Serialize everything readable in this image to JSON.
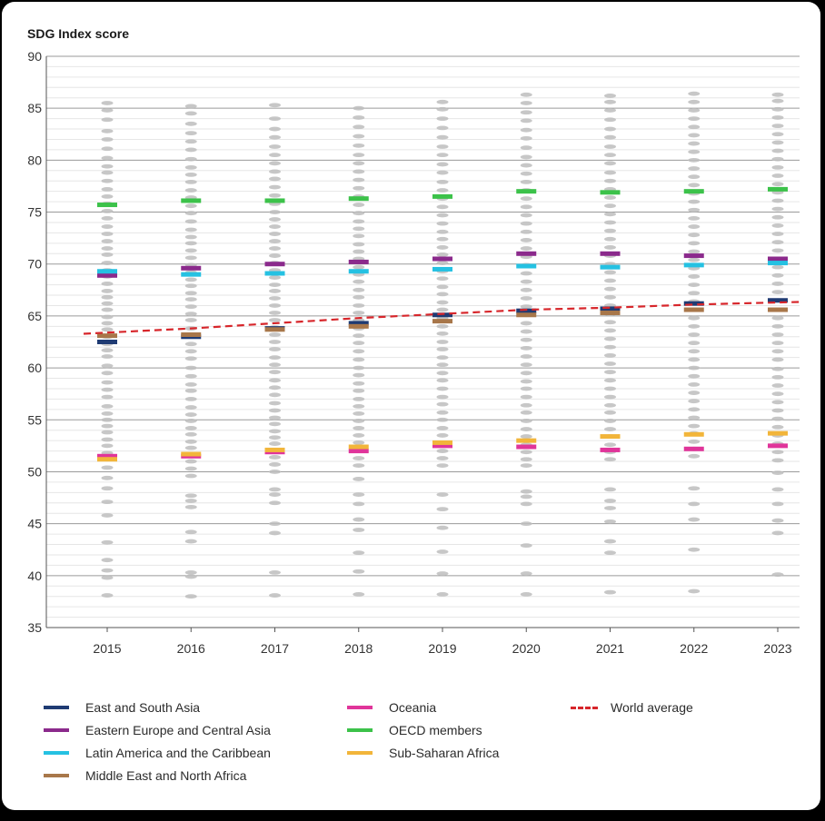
{
  "chart_data": {
    "type": "scatter",
    "title": "SDG Index score",
    "ylabel": "SDG Index score",
    "xlabel": "",
    "ylim": [
      35,
      90
    ],
    "yticks": [
      35,
      40,
      45,
      50,
      55,
      60,
      65,
      70,
      75,
      80,
      85,
      90
    ],
    "categories": [
      "2015",
      "2016",
      "2017",
      "2018",
      "2019",
      "2020",
      "2021",
      "2022",
      "2023"
    ],
    "grid": true,
    "country_scores": [
      [
        38.1,
        39.8,
        40.5,
        41.5,
        43.2,
        45.8,
        47.1,
        48.4,
        49.4,
        50.4,
        51.2,
        51.8,
        52.5,
        53.1,
        53.8,
        54.4,
        55.0,
        55.6,
        56.3,
        57.2,
        57.9,
        58.6,
        59.5,
        60.2,
        61.1,
        61.7,
        62.3,
        63.0,
        63.7,
        64.3,
        64.9,
        65.6,
        66.2,
        66.8,
        67.4,
        68.1,
        68.8,
        69.4,
        70.1,
        70.9,
        71.5,
        72.2,
        72.9,
        73.6,
        74.4,
        75.1,
        75.8,
        76.5,
        77.2,
        78.0,
        78.8,
        79.4,
        80.2,
        81.1,
        82.0,
        82.8,
        83.9,
        84.8,
        85.5
      ],
      [
        38.0,
        39.9,
        40.3,
        43.3,
        44.2,
        46.6,
        47.2,
        47.7,
        49.6,
        50.3,
        51.0,
        51.7,
        52.3,
        52.9,
        53.6,
        54.2,
        54.9,
        55.5,
        56.2,
        57.0,
        57.8,
        58.4,
        59.2,
        60.0,
        60.9,
        61.6,
        62.3,
        63.1,
        63.8,
        64.6,
        65.2,
        65.9,
        66.6,
        67.2,
        67.9,
        68.5,
        69.2,
        69.9,
        70.6,
        71.3,
        72.0,
        72.6,
        73.3,
        74.1,
        74.9,
        75.6,
        76.4,
        77.1,
        77.9,
        78.6,
        79.3,
        80.1,
        81.0,
        81.8,
        82.6,
        83.5,
        84.5,
        85.2
      ],
      [
        38.1,
        40.3,
        44.1,
        45.0,
        47.0,
        47.8,
        48.3,
        50.0,
        50.7,
        51.4,
        52.0,
        52.7,
        53.3,
        53.9,
        54.6,
        55.2,
        55.9,
        56.6,
        57.4,
        58.1,
        58.8,
        59.6,
        60.3,
        61.0,
        61.8,
        62.5,
        63.2,
        63.9,
        64.6,
        65.3,
        66.0,
        66.7,
        67.4,
        68.0,
        68.7,
        69.4,
        70.1,
        70.8,
        71.5,
        72.2,
        72.9,
        73.6,
        74.3,
        75.0,
        75.8,
        76.6,
        77.4,
        78.2,
        78.9,
        79.7,
        80.5,
        81.3,
        82.2,
        83.0,
        84.0,
        85.3
      ],
      [
        38.2,
        40.4,
        42.2,
        44.4,
        45.4,
        46.9,
        47.8,
        49.3,
        50.6,
        51.3,
        52.0,
        52.8,
        53.5,
        54.2,
        54.9,
        55.6,
        56.3,
        57.0,
        57.8,
        58.5,
        59.3,
        60.0,
        60.8,
        61.6,
        62.4,
        63.1,
        63.8,
        64.6,
        65.3,
        66.0,
        66.8,
        67.5,
        68.3,
        69.0,
        69.7,
        70.5,
        71.2,
        71.9,
        72.7,
        73.4,
        74.1,
        74.9,
        75.7,
        76.5,
        77.3,
        78.1,
        78.9,
        79.7,
        80.5,
        81.4,
        82.3,
        83.2,
        84.1,
        85.0
      ],
      [
        38.2,
        40.2,
        42.3,
        44.6,
        46.4,
        47.8,
        50.6,
        51.3,
        52.0,
        52.7,
        53.5,
        54.2,
        55.0,
        55.7,
        56.5,
        57.2,
        58.0,
        58.8,
        59.5,
        60.3,
        61.0,
        61.8,
        62.5,
        63.3,
        64.0,
        64.8,
        65.6,
        66.3,
        67.1,
        67.8,
        68.6,
        69.3,
        70.1,
        70.9,
        71.6,
        72.4,
        73.1,
        73.9,
        74.7,
        75.5,
        76.3,
        77.1,
        77.9,
        78.8,
        79.6,
        80.5,
        81.3,
        82.2,
        83.1,
        84.0,
        84.9,
        85.6
      ],
      [
        38.2,
        40.2,
        42.9,
        45.0,
        46.9,
        47.6,
        48.1,
        50.6,
        51.2,
        51.9,
        52.6,
        53.4,
        54.1,
        54.9,
        55.7,
        56.4,
        57.2,
        58.0,
        58.7,
        59.5,
        60.3,
        61.1,
        61.9,
        62.7,
        63.5,
        64.3,
        65.1,
        65.9,
        66.7,
        67.5,
        68.3,
        69.1,
        69.9,
        70.7,
        71.5,
        72.3,
        73.1,
        73.9,
        74.7,
        75.5,
        76.3,
        77.1,
        77.9,
        78.7,
        79.5,
        80.3,
        81.2,
        82.1,
        82.9,
        83.8,
        84.6,
        85.5,
        86.3
      ],
      [
        38.4,
        42.2,
        43.3,
        45.2,
        46.5,
        47.2,
        48.3,
        51.2,
        51.9,
        52.6,
        53.4,
        54.1,
        54.9,
        55.7,
        56.4,
        57.2,
        58.0,
        58.8,
        59.6,
        60.4,
        61.2,
        62.0,
        62.8,
        63.6,
        64.4,
        65.2,
        66.0,
        66.8,
        67.6,
        68.4,
        69.2,
        70.0,
        70.8,
        71.6,
        72.4,
        73.2,
        74.0,
        74.8,
        75.6,
        76.4,
        77.2,
        78.0,
        78.8,
        79.7,
        80.5,
        81.3,
        82.2,
        83.0,
        83.9,
        84.8,
        85.6,
        86.2
      ],
      [
        38.5,
        42.5,
        45.4,
        46.9,
        48.4,
        51.5,
        52.2,
        52.9,
        53.7,
        54.4,
        55.2,
        56.0,
        56.8,
        57.6,
        58.4,
        59.2,
        60.0,
        60.8,
        61.6,
        62.4,
        63.2,
        64.0,
        64.8,
        65.6,
        66.4,
        67.2,
        68.0,
        68.8,
        69.6,
        70.4,
        71.2,
        72.0,
        72.8,
        73.6,
        74.4,
        75.2,
        76.0,
        76.8,
        77.6,
        78.4,
        79.2,
        80.0,
        80.8,
        81.6,
        82.4,
        83.2,
        84.0,
        84.8,
        85.6,
        86.4
      ],
      [
        40.1,
        44.1,
        45.3,
        46.9,
        48.3,
        49.9,
        51.1,
        51.9,
        52.7,
        53.5,
        54.3,
        55.1,
        55.9,
        56.7,
        57.5,
        58.3,
        59.1,
        59.9,
        60.8,
        61.6,
        62.4,
        63.2,
        64.0,
        64.8,
        65.6,
        66.5,
        67.3,
        68.1,
        68.9,
        69.7,
        70.5,
        71.3,
        72.1,
        72.9,
        73.7,
        74.5,
        75.3,
        76.1,
        76.9,
        77.7,
        78.5,
        79.3,
        80.1,
        80.9,
        81.7,
        82.5,
        83.3,
        84.1,
        84.9,
        85.7,
        86.3
      ]
    ],
    "series": [
      {
        "name": "East and South Asia",
        "color": "#1f3b73",
        "values": [
          62.5,
          63.0,
          63.8,
          64.3,
          65.1,
          65.5,
          65.7,
          66.2,
          66.5
        ]
      },
      {
        "name": "Eastern Europe and Central Asia",
        "color": "#8b2a8c",
        "values": [
          68.9,
          69.6,
          70.0,
          70.2,
          70.5,
          71.0,
          71.0,
          70.8,
          70.5
        ]
      },
      {
        "name": "Latin America and the Caribbean",
        "color": "#25c1e2",
        "values": [
          69.3,
          69.0,
          69.1,
          69.3,
          69.5,
          69.8,
          69.7,
          69.9,
          70.1
        ]
      },
      {
        "name": "Middle East and North Africa",
        "color": "#a8774a",
        "values": [
          63.1,
          63.2,
          63.7,
          64.0,
          64.5,
          65.1,
          65.3,
          65.6,
          65.6
        ]
      },
      {
        "name": "Oceania",
        "color": "#e0359a",
        "values": [
          51.5,
          51.5,
          51.9,
          52.0,
          52.5,
          52.4,
          52.1,
          52.2,
          52.5
        ]
      },
      {
        "name": "OECD members",
        "color": "#3cc24a",
        "values": [
          75.7,
          76.1,
          76.1,
          76.3,
          76.5,
          77.0,
          76.9,
          77.0,
          77.2
        ]
      },
      {
        "name": "Sub-Saharan Africa",
        "color": "#f2b53a",
        "values": [
          51.2,
          51.7,
          52.1,
          52.4,
          52.8,
          53.0,
          53.4,
          53.6,
          53.7
        ]
      },
      {
        "name": "World average",
        "color": "#d7262b",
        "style": "dashed",
        "values": [
          63.4,
          63.8,
          64.3,
          64.8,
          65.2,
          65.6,
          65.8,
          66.1,
          66.3
        ]
      }
    ],
    "legend_position": "bottom"
  }
}
